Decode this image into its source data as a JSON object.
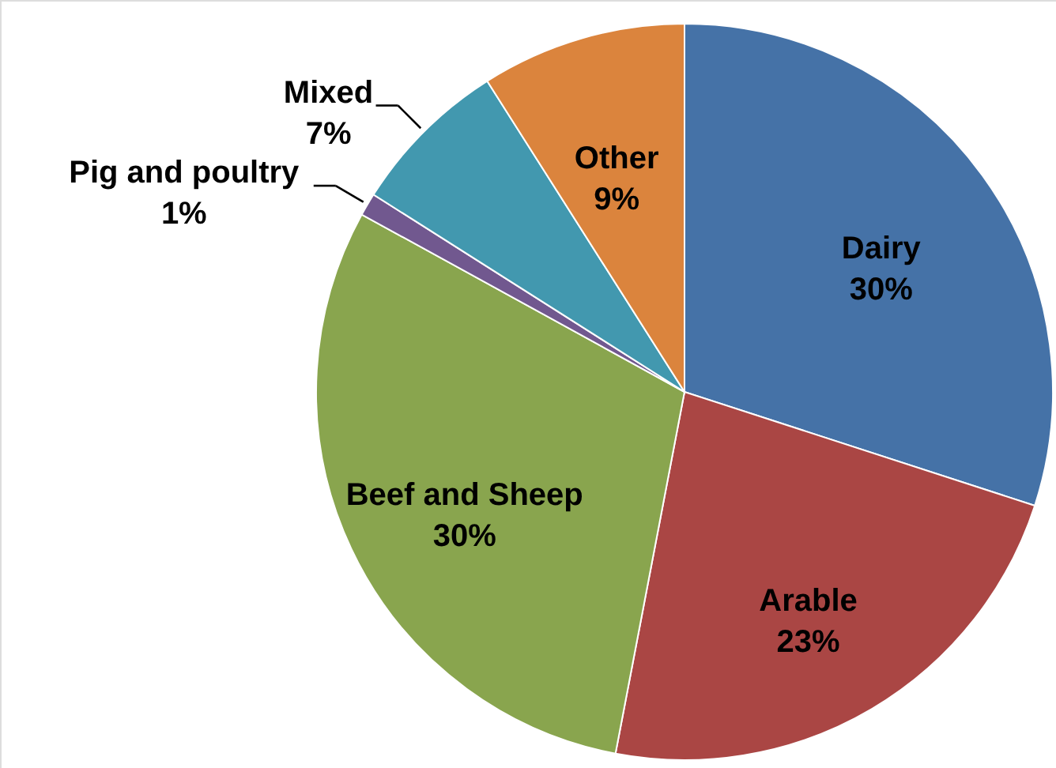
{
  "chart_data": {
    "type": "pie",
    "categories": [
      "Dairy",
      "Arable",
      "Beef and Sheep",
      "Pig and poultry",
      "Mixed",
      "Other"
    ],
    "values": [
      30,
      23,
      30,
      1,
      7,
      9
    ],
    "colors": [
      "#4572a7",
      "#aa4644",
      "#89a54e",
      "#71588f",
      "#4298af",
      "#db843d"
    ],
    "value_labels": [
      "30%",
      "23%",
      "30%",
      "1%",
      "7%",
      "9%"
    ]
  }
}
